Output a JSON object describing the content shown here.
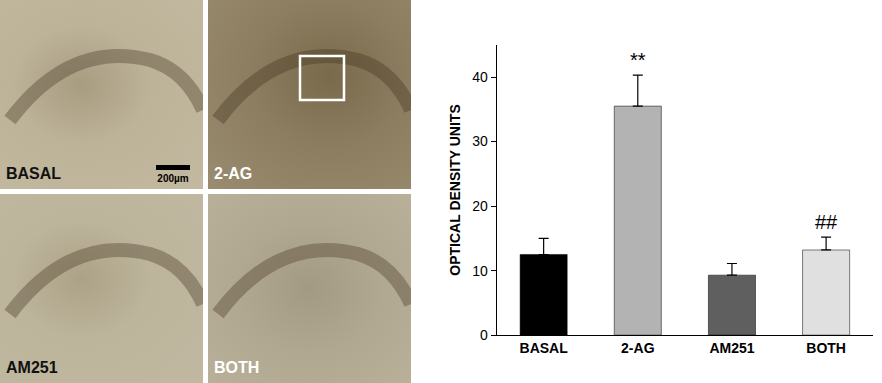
{
  "image_panels": {
    "labels": [
      "BASAL",
      "2-AG",
      "AM251",
      "BOTH"
    ],
    "scale_bar_label": "200µm"
  },
  "chart_data": {
    "type": "bar",
    "categories": [
      "BASAL",
      "2-AG",
      "AM251",
      "BOTH"
    ],
    "values": [
      12.5,
      35.5,
      9.3,
      13.2
    ],
    "errors": [
      2.5,
      4.8,
      1.8,
      2.0
    ],
    "colors": [
      "#000000",
      "#b3b3b3",
      "#5f5f5f",
      "#e0e0e0"
    ],
    "y_label": "OPTICAL DENSITY UNITS",
    "ylim": [
      0,
      45
    ],
    "yticks": [
      0,
      10,
      20,
      30,
      40
    ],
    "grid": false,
    "annotations": [
      {
        "category": "2-AG",
        "text": "**"
      },
      {
        "category": "BOTH",
        "text": "##"
      }
    ]
  }
}
